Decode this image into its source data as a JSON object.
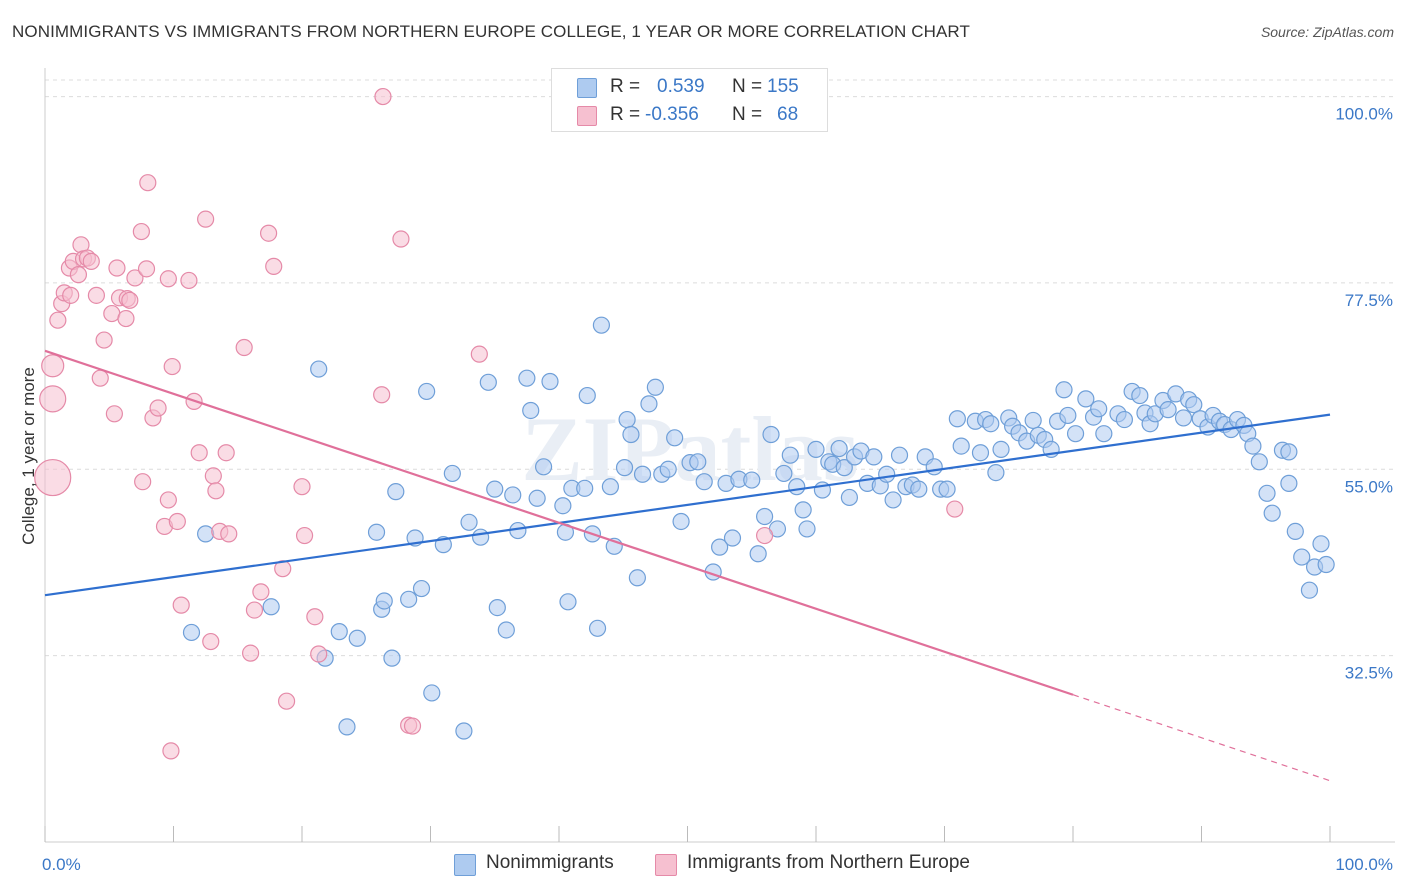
{
  "title": "NONIMMIGRANTS VS IMMIGRANTS FROM NORTHERN EUROPE COLLEGE, 1 YEAR OR MORE CORRELATION CHART",
  "source": "Source: ZipAtlas.com",
  "watermark": "ZIPatlas",
  "legend": {
    "rows": [
      {
        "r_label": "R =",
        "r_value": "0.539",
        "n_label": "N =",
        "n_value": "155",
        "color": "#aecbf0",
        "border": "#6f9fd8"
      },
      {
        "r_label": "R =",
        "r_value": "-0.356",
        "n_label": "N =",
        "n_value": "68",
        "color": "#f6c0d0",
        "border": "#e58aa8"
      }
    ]
  },
  "bottom_legend": [
    {
      "label": "Nonimmigrants",
      "color": "#aecbf0",
      "border": "#6f9fd8"
    },
    {
      "label": "Immigrants from Northern Europe",
      "color": "#f6c0d0",
      "border": "#e58aa8"
    }
  ],
  "chart_data": {
    "type": "scatter",
    "ylabel": "College, 1 year or more",
    "xlabel": "",
    "xlim": [
      0,
      100
    ],
    "ylim": [
      10,
      102
    ],
    "y_ticks": [
      {
        "value": 32.5,
        "label": "32.5%"
      },
      {
        "value": 55.0,
        "label": "55.0%"
      },
      {
        "value": 77.5,
        "label": "77.5%"
      },
      {
        "value": 100.0,
        "label": "100.0%"
      }
    ],
    "x_ticks": [
      {
        "value": 0,
        "label": "0.0%"
      },
      {
        "value": 100,
        "label": "100.0%"
      }
    ],
    "grid": true,
    "series": [
      {
        "name": "Nonimmigrants",
        "color": "#aecbf0",
        "edge": "#6f9fd8",
        "line_color": "#2f6fcf",
        "trend": {
          "x": [
            0,
            100
          ],
          "y": [
            39.8,
            61.6
          ]
        },
        "points": [
          [
            12.5,
            47.2
          ],
          [
            11.4,
            35.3
          ],
          [
            17.6,
            38.4
          ],
          [
            21.3,
            67.1
          ],
          [
            21.8,
            32.2
          ],
          [
            23.5,
            23.9
          ],
          [
            22.9,
            35.4
          ],
          [
            24.3,
            34.6
          ],
          [
            25.8,
            47.4
          ],
          [
            26.2,
            38.1
          ],
          [
            26.4,
            39.1
          ],
          [
            27.0,
            32.2
          ],
          [
            27.3,
            52.3
          ],
          [
            28.3,
            39.3
          ],
          [
            28.8,
            46.7
          ],
          [
            29.3,
            40.6
          ],
          [
            29.7,
            64.4
          ],
          [
            30.1,
            28.0
          ],
          [
            31.0,
            45.9
          ],
          [
            31.7,
            54.5
          ],
          [
            32.6,
            23.4
          ],
          [
            33.0,
            48.6
          ],
          [
            33.9,
            46.8
          ],
          [
            34.5,
            65.5
          ],
          [
            35.0,
            52.6
          ],
          [
            35.2,
            38.3
          ],
          [
            35.9,
            35.6
          ],
          [
            36.4,
            51.9
          ],
          [
            36.8,
            47.6
          ],
          [
            37.5,
            66.0
          ],
          [
            37.8,
            62.1
          ],
          [
            38.3,
            51.5
          ],
          [
            38.8,
            55.3
          ],
          [
            39.3,
            65.6
          ],
          [
            40.3,
            50.6
          ],
          [
            40.5,
            47.4
          ],
          [
            40.7,
            39.0
          ],
          [
            41.0,
            52.7
          ],
          [
            42.0,
            52.7
          ],
          [
            42.2,
            63.9
          ],
          [
            42.6,
            47.2
          ],
          [
            43.0,
            35.8
          ],
          [
            43.3,
            72.4
          ],
          [
            44.0,
            52.9
          ],
          [
            44.3,
            45.7
          ],
          [
            45.1,
            55.2
          ],
          [
            45.3,
            61.0
          ],
          [
            45.6,
            59.2
          ],
          [
            46.1,
            41.9
          ],
          [
            46.5,
            54.4
          ],
          [
            47.0,
            62.9
          ],
          [
            47.5,
            64.9
          ],
          [
            48.0,
            54.4
          ],
          [
            48.5,
            55.0
          ],
          [
            49.0,
            58.8
          ],
          [
            49.5,
            48.7
          ],
          [
            50.2,
            55.8
          ],
          [
            50.8,
            55.9
          ],
          [
            51.3,
            53.5
          ],
          [
            52.0,
            42.6
          ],
          [
            52.5,
            45.6
          ],
          [
            53.0,
            53.3
          ],
          [
            53.5,
            46.7
          ],
          [
            54.0,
            53.8
          ],
          [
            55.0,
            53.7
          ],
          [
            55.5,
            44.8
          ],
          [
            56.0,
            49.3
          ],
          [
            56.5,
            59.2
          ],
          [
            57.0,
            47.8
          ],
          [
            57.5,
            54.5
          ],
          [
            58.0,
            56.7
          ],
          [
            58.5,
            52.9
          ],
          [
            59.0,
            50.1
          ],
          [
            59.3,
            47.8
          ],
          [
            60.0,
            57.4
          ],
          [
            60.5,
            52.5
          ],
          [
            61.0,
            55.9
          ],
          [
            61.3,
            55.6
          ],
          [
            61.8,
            57.5
          ],
          [
            62.2,
            55.2
          ],
          [
            62.6,
            51.6
          ],
          [
            63.0,
            56.5
          ],
          [
            63.5,
            57.2
          ],
          [
            64.0,
            53.3
          ],
          [
            64.5,
            56.5
          ],
          [
            65.0,
            53.0
          ],
          [
            65.5,
            54.4
          ],
          [
            66.0,
            51.3
          ],
          [
            66.5,
            56.7
          ],
          [
            67.0,
            52.9
          ],
          [
            67.5,
            53.1
          ],
          [
            68.0,
            52.6
          ],
          [
            68.5,
            56.5
          ],
          [
            69.2,
            55.3
          ],
          [
            69.7,
            52.6
          ],
          [
            70.2,
            52.6
          ],
          [
            71.0,
            61.1
          ],
          [
            71.3,
            57.8
          ],
          [
            72.4,
            60.8
          ],
          [
            72.8,
            57.0
          ],
          [
            73.2,
            61.0
          ],
          [
            73.6,
            60.5
          ],
          [
            74.0,
            54.6
          ],
          [
            74.4,
            57.4
          ],
          [
            75.0,
            61.2
          ],
          [
            75.3,
            60.2
          ],
          [
            75.8,
            59.4
          ],
          [
            76.4,
            58.4
          ],
          [
            76.9,
            60.9
          ],
          [
            77.3,
            59.1
          ],
          [
            77.8,
            58.6
          ],
          [
            78.3,
            57.4
          ],
          [
            78.8,
            60.8
          ],
          [
            79.3,
            64.6
          ],
          [
            79.6,
            61.5
          ],
          [
            80.2,
            59.3
          ],
          [
            81.0,
            63.5
          ],
          [
            81.6,
            61.3
          ],
          [
            82.0,
            62.3
          ],
          [
            82.4,
            59.3
          ],
          [
            83.5,
            61.7
          ],
          [
            84.0,
            61.0
          ],
          [
            84.6,
            64.4
          ],
          [
            85.2,
            63.9
          ],
          [
            85.6,
            61.8
          ],
          [
            86.0,
            60.5
          ],
          [
            86.4,
            61.7
          ],
          [
            87.0,
            63.3
          ],
          [
            87.4,
            62.2
          ],
          [
            88.0,
            64.1
          ],
          [
            88.6,
            61.2
          ],
          [
            89.0,
            63.4
          ],
          [
            89.4,
            62.8
          ],
          [
            89.9,
            61.1
          ],
          [
            90.5,
            60.1
          ],
          [
            90.9,
            61.5
          ],
          [
            91.4,
            60.8
          ],
          [
            91.8,
            60.4
          ],
          [
            92.3,
            59.8
          ],
          [
            92.8,
            61.0
          ],
          [
            93.3,
            60.3
          ],
          [
            93.6,
            59.3
          ],
          [
            94.0,
            57.8
          ],
          [
            94.5,
            55.9
          ],
          [
            95.1,
            52.1
          ],
          [
            95.5,
            49.7
          ],
          [
            96.3,
            57.3
          ],
          [
            96.8,
            53.3
          ],
          [
            97.3,
            47.5
          ],
          [
            97.8,
            44.4
          ],
          [
            98.4,
            40.4
          ],
          [
            98.8,
            43.2
          ],
          [
            99.3,
            46.0
          ],
          [
            99.7,
            43.5
          ],
          [
            96.8,
            57.1
          ]
        ]
      },
      {
        "name": "Immigrants from Northern Europe",
        "color": "#f6c0d0",
        "edge": "#e58aa8",
        "line_color": "#e0709a",
        "trend": {
          "x": [
            0,
            100
          ],
          "y": [
            69.3,
            17.4
          ]
        },
        "trend_solid_until_x": 80,
        "points": [
          [
            0.6,
            67.5
          ],
          [
            0.6,
            63.5
          ],
          [
            0.6,
            54.0
          ],
          [
            1.0,
            73.0
          ],
          [
            1.3,
            75.0
          ],
          [
            1.5,
            76.3
          ],
          [
            1.9,
            79.3
          ],
          [
            2.0,
            76.0
          ],
          [
            2.2,
            80.1
          ],
          [
            2.6,
            78.5
          ],
          [
            2.8,
            82.1
          ],
          [
            3.0,
            80.4
          ],
          [
            3.3,
            80.5
          ],
          [
            3.6,
            80.1
          ],
          [
            4.0,
            76.0
          ],
          [
            4.3,
            66.0
          ],
          [
            4.6,
            70.6
          ],
          [
            5.2,
            73.8
          ],
          [
            5.4,
            61.7
          ],
          [
            5.6,
            79.3
          ],
          [
            5.8,
            75.7
          ],
          [
            6.3,
            73.2
          ],
          [
            6.4,
            75.6
          ],
          [
            6.6,
            75.4
          ],
          [
            7.0,
            78.1
          ],
          [
            7.5,
            83.7
          ],
          [
            7.6,
            53.5
          ],
          [
            7.9,
            79.2
          ],
          [
            8.0,
            89.6
          ],
          [
            8.4,
            61.2
          ],
          [
            8.8,
            62.4
          ],
          [
            9.3,
            48.1
          ],
          [
            9.6,
            51.3
          ],
          [
            9.6,
            78.0
          ],
          [
            9.9,
            67.4
          ],
          [
            10.3,
            48.7
          ],
          [
            10.6,
            38.6
          ],
          [
            11.2,
            77.8
          ],
          [
            11.6,
            63.2
          ],
          [
            12.0,
            57.0
          ],
          [
            12.5,
            85.2
          ],
          [
            12.9,
            34.2
          ],
          [
            13.1,
            54.2
          ],
          [
            13.3,
            52.4
          ],
          [
            13.6,
            47.5
          ],
          [
            14.1,
            57.0
          ],
          [
            14.3,
            47.2
          ],
          [
            15.5,
            69.7
          ],
          [
            16.3,
            38.0
          ],
          [
            16.8,
            40.2
          ],
          [
            17.4,
            83.5
          ],
          [
            17.8,
            79.5
          ],
          [
            18.5,
            43.0
          ],
          [
            18.8,
            27.0
          ],
          [
            20.0,
            52.9
          ],
          [
            20.2,
            47.0
          ],
          [
            21.0,
            37.2
          ],
          [
            21.3,
            32.7
          ],
          [
            26.2,
            64.0
          ],
          [
            26.3,
            100.0
          ],
          [
            27.7,
            82.8
          ],
          [
            28.3,
            24.1
          ],
          [
            28.6,
            24.0
          ],
          [
            33.8,
            68.9
          ],
          [
            70.8,
            50.2
          ],
          [
            56.0,
            47.0
          ],
          [
            9.8,
            21.0
          ],
          [
            16.0,
            32.8
          ]
        ]
      }
    ]
  }
}
